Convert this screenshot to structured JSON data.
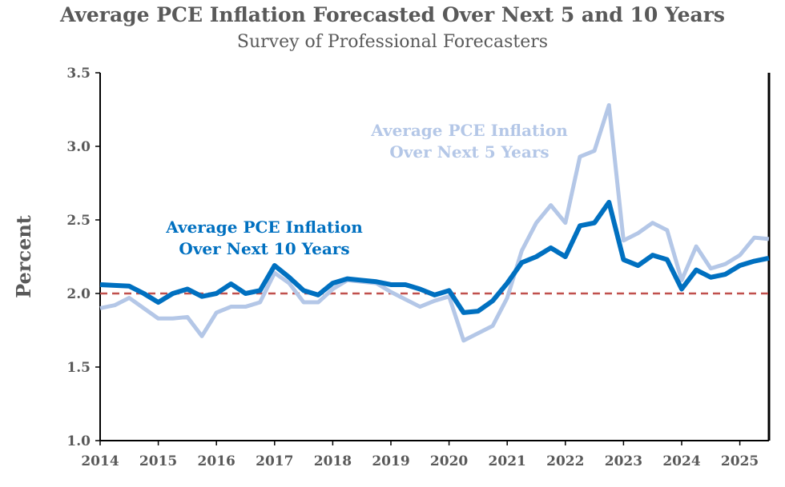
{
  "chart_data": {
    "type": "line",
    "title": "Average PCE Inflation Forecasted Over Next  5 and 10 Years",
    "subtitle": "Survey of Professional Forecasters",
    "ylabel": "Percent",
    "xlabel": "",
    "ylim": [
      1.0,
      3.5
    ],
    "xlim": [
      2014.0,
      2025.5
    ],
    "yticks": [
      "1.0",
      "1.5",
      "2.0",
      "2.5",
      "3.0",
      "3.5"
    ],
    "xticks": [
      "2014",
      "2015",
      "2016",
      "2017",
      "2018",
      "2019",
      "2020",
      "2021",
      "2022",
      "2023",
      "2024",
      "2025"
    ],
    "grid": false,
    "reference_line": {
      "y": 2.0,
      "style": "dashed",
      "color": "#c0504d"
    },
    "x_start": 2014.0,
    "x_step": 0.25,
    "series": [
      {
        "name": "Average PCE Inflation Over Next 5 Years",
        "label_lines": [
          "Average PCE Inflation",
          "Over Next 5 Years"
        ],
        "color": "#b4c7e7",
        "values": [
          1.9,
          1.92,
          1.97,
          1.9,
          1.83,
          1.83,
          1.84,
          1.71,
          1.87,
          1.91,
          1.91,
          1.94,
          2.14,
          2.07,
          1.94,
          1.94,
          2.03,
          2.09,
          2.08,
          2.07,
          2.01,
          1.96,
          1.91,
          1.95,
          1.98,
          1.68,
          1.73,
          1.78,
          1.97,
          2.29,
          2.48,
          2.6,
          2.48,
          2.93,
          2.97,
          3.28,
          2.36,
          2.41,
          2.48,
          2.43,
          2.09,
          2.32,
          2.17,
          2.2,
          2.26,
          2.38,
          2.37
        ]
      },
      {
        "name": "Average PCE Inflation Over Next 10 Years",
        "label_lines": [
          "Average PCE Inflation",
          "Over Next 10 Years"
        ],
        "color": "#0070c0",
        "values": [
          2.06,
          2.055,
          2.05,
          2.0,
          1.94,
          2.0,
          2.03,
          1.98,
          2.0,
          2.065,
          2.0,
          2.02,
          2.19,
          2.11,
          2.02,
          1.99,
          2.07,
          2.1,
          2.09,
          2.08,
          2.06,
          2.06,
          2.03,
          1.99,
          2.02,
          1.87,
          1.88,
          1.95,
          2.07,
          2.21,
          2.25,
          2.31,
          2.25,
          2.46,
          2.48,
          2.62,
          2.23,
          2.19,
          2.26,
          2.23,
          2.03,
          2.16,
          2.11,
          2.13,
          2.19,
          2.22,
          2.24
        ]
      }
    ]
  }
}
